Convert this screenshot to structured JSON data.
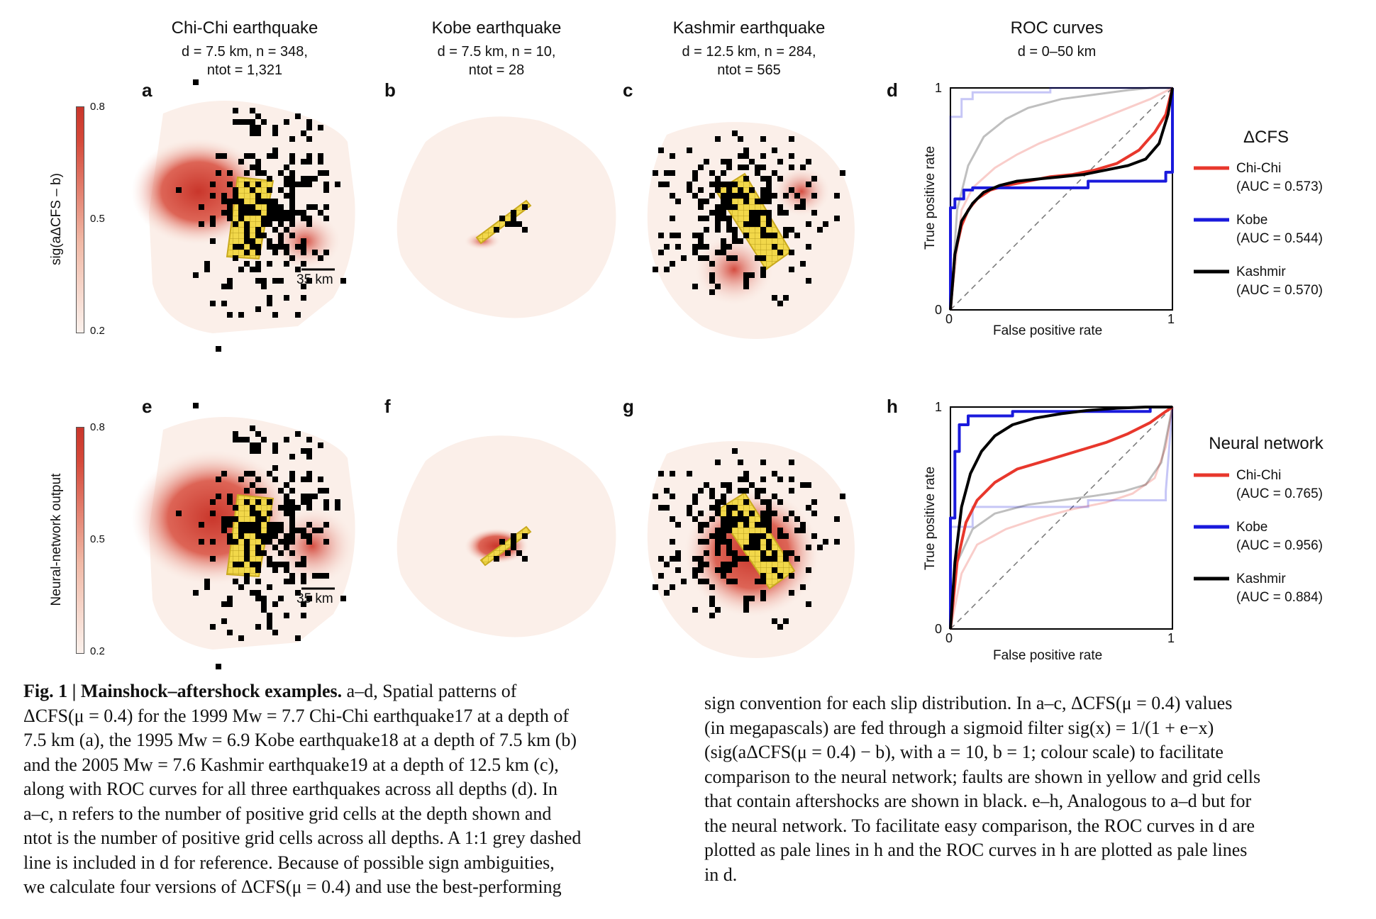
{
  "columns": [
    {
      "title": "Chi-Chi earthquake",
      "line1": "d = 7.5 km, n = 348,",
      "line2": "ntot = 1,321"
    },
    {
      "title": "Kobe earthquake",
      "line1": "d = 7.5 km, n = 10,",
      "line2": "ntot = 28"
    },
    {
      "title": "Kashmir earthquake",
      "line1": "d = 12.5 km, n = 284,",
      "line2": "ntot = 565"
    },
    {
      "title": "ROC curves",
      "line1": "d = 0–50 km",
      "line2": ""
    }
  ],
  "panel_labels": [
    "a",
    "b",
    "c",
    "d",
    "e",
    "f",
    "g",
    "h"
  ],
  "colorbars": [
    {
      "label": "sig(aΔCFS – b)",
      "ticks": [
        "0.8",
        "0.5",
        "0.2"
      ]
    },
    {
      "label": "Neural-network output",
      "ticks": [
        "0.8",
        "0.5",
        "0.2"
      ]
    }
  ],
  "scale_bar": "35 km",
  "colors": {
    "chichi": "#e8372c",
    "kobe": "#1a1adc",
    "kashmir": "#000000",
    "fault": "#f2d84a",
    "heat": "#c9362b"
  },
  "chart_data": [
    {
      "type": "line",
      "panel": "d",
      "xlabel": "False positive rate",
      "ylabel": "True positive rate",
      "xlim": [
        0,
        1
      ],
      "ylim": [
        0,
        1
      ],
      "xticks": [
        "0",
        "1"
      ],
      "yticks": [
        "0",
        "1"
      ],
      "legend_title": "ΔCFS",
      "series": [
        {
          "name": "Chi-Chi",
          "auc": "(AUC = 0.573)",
          "style": "solid",
          "x": [
            0,
            0.02,
            0.05,
            0.08,
            0.12,
            0.18,
            0.25,
            0.35,
            0.45,
            0.55,
            0.65,
            0.75,
            0.85,
            0.92,
            0.97,
            1.0
          ],
          "y": [
            0,
            0.25,
            0.38,
            0.45,
            0.5,
            0.54,
            0.56,
            0.58,
            0.6,
            0.61,
            0.63,
            0.66,
            0.72,
            0.8,
            0.88,
            1.0
          ]
        },
        {
          "name": "Kobe",
          "auc": "(AUC = 0.544)",
          "style": "solid",
          "x": [
            0,
            0,
            0.02,
            0.02,
            0.06,
            0.06,
            0.1,
            0.1,
            0.62,
            0.62,
            0.97,
            0.97,
            1.0,
            1.0
          ],
          "y": [
            0,
            0.46,
            0.46,
            0.5,
            0.5,
            0.54,
            0.54,
            0.55,
            0.55,
            0.58,
            0.58,
            0.62,
            0.62,
            1.0
          ]
        },
        {
          "name": "Kashmir",
          "auc": "(AUC = 0.570)",
          "style": "solid",
          "x": [
            0,
            0.02,
            0.05,
            0.1,
            0.15,
            0.22,
            0.3,
            0.4,
            0.5,
            0.6,
            0.7,
            0.8,
            0.88,
            0.94,
            0.98,
            1.0
          ],
          "y": [
            0,
            0.25,
            0.4,
            0.48,
            0.53,
            0.56,
            0.58,
            0.59,
            0.6,
            0.61,
            0.63,
            0.65,
            0.68,
            0.75,
            0.88,
            1.0
          ]
        }
      ],
      "pale_series": [
        {
          "name": "Chi-Chi",
          "x": [
            0,
            0.05,
            0.1,
            0.2,
            0.3,
            0.4,
            0.5,
            0.6,
            0.7,
            0.8,
            0.9,
            1.0
          ],
          "y": [
            0,
            0.45,
            0.55,
            0.64,
            0.7,
            0.75,
            0.79,
            0.83,
            0.87,
            0.91,
            0.95,
            1.0
          ]
        },
        {
          "name": "Kobe",
          "x": [
            0,
            0,
            0.05,
            0.05,
            0.1,
            0.1,
            0.45,
            0.45,
            1.0
          ],
          "y": [
            0,
            0.87,
            0.87,
            0.95,
            0.95,
            0.98,
            0.98,
            1.0,
            1.0
          ]
        },
        {
          "name": "Kashmir",
          "x": [
            0,
            0.03,
            0.08,
            0.15,
            0.25,
            0.35,
            0.5,
            0.65,
            0.8,
            0.9,
            1.0
          ],
          "y": [
            0,
            0.45,
            0.65,
            0.78,
            0.86,
            0.91,
            0.95,
            0.97,
            0.99,
            1.0,
            1.0
          ]
        }
      ]
    },
    {
      "type": "line",
      "panel": "h",
      "xlabel": "False positive rate",
      "ylabel": "True positive rate",
      "xlim": [
        0,
        1
      ],
      "ylim": [
        0,
        1
      ],
      "xticks": [
        "0",
        "1"
      ],
      "yticks": [
        "0",
        "1"
      ],
      "legend_title": "Neural network",
      "series": [
        {
          "name": "Chi-Chi",
          "auc": "(AUC = 0.765)",
          "style": "solid",
          "x": [
            0,
            0.03,
            0.07,
            0.12,
            0.2,
            0.3,
            0.4,
            0.5,
            0.6,
            0.7,
            0.8,
            0.9,
            0.97,
            1.0
          ],
          "y": [
            0,
            0.3,
            0.48,
            0.58,
            0.66,
            0.72,
            0.75,
            0.78,
            0.81,
            0.84,
            0.88,
            0.93,
            0.98,
            1.0
          ]
        },
        {
          "name": "Kobe",
          "auc": "(AUC = 0.956)",
          "style": "solid",
          "x": [
            0,
            0,
            0.02,
            0.02,
            0.04,
            0.04,
            0.08,
            0.08,
            0.28,
            0.28,
            0.9,
            0.9,
            1.0
          ],
          "y": [
            0,
            0.5,
            0.5,
            0.8,
            0.8,
            0.92,
            0.92,
            0.96,
            0.96,
            0.98,
            0.98,
            1.0,
            1.0
          ]
        },
        {
          "name": "Kashmir",
          "auc": "(AUC = 0.884)",
          "style": "solid",
          "x": [
            0,
            0.02,
            0.05,
            0.09,
            0.14,
            0.2,
            0.28,
            0.38,
            0.5,
            0.62,
            0.75,
            0.88,
            1.0
          ],
          "y": [
            0,
            0.3,
            0.55,
            0.7,
            0.8,
            0.87,
            0.92,
            0.95,
            0.97,
            0.985,
            0.995,
            1.0,
            1.0
          ]
        }
      ],
      "pale_series": [
        {
          "name": "Chi-Chi",
          "x": [
            0,
            0.05,
            0.12,
            0.25,
            0.4,
            0.55,
            0.7,
            0.82,
            0.92,
            0.97,
            1.0
          ],
          "y": [
            0,
            0.25,
            0.38,
            0.45,
            0.5,
            0.54,
            0.57,
            0.61,
            0.68,
            0.82,
            1.0
          ]
        },
        {
          "name": "Kobe",
          "x": [
            0,
            0,
            0.1,
            0.1,
            0.62,
            0.62,
            0.97,
            0.97,
            1.0
          ],
          "y": [
            0,
            0.46,
            0.46,
            0.55,
            0.55,
            0.58,
            0.58,
            0.62,
            1.0
          ]
        },
        {
          "name": "Kashmir",
          "x": [
            0,
            0.03,
            0.1,
            0.2,
            0.35,
            0.5,
            0.65,
            0.78,
            0.88,
            0.95,
            1.0
          ],
          "y": [
            0,
            0.3,
            0.45,
            0.52,
            0.56,
            0.58,
            0.6,
            0.62,
            0.65,
            0.75,
            1.0
          ]
        }
      ]
    }
  ],
  "caption_left": {
    "fig": "Fig. 1 | Mainshock–aftershock examples.",
    "lines": [
      " a–d, Spatial patterns of",
      "ΔCFS(μ = 0.4) for the 1999 Mw = 7.7 Chi-Chi earthquake17 at a depth of",
      "7.5 km (a), the 1995 Mw = 6.9 Kobe earthquake18 at a depth of 7.5 km (b)",
      "and the 2005 Mw = 7.6 Kashmir earthquake19 at a depth of 12.5 km (c),",
      "along with ROC curves for all three earthquakes across all depths (d). In",
      "a–c, n refers to the number of positive grid cells at the depth shown and",
      "ntot is the number of positive grid cells across all depths. A 1:1 grey dashed",
      "line is included in d for reference. Because of possible sign ambiguities,",
      "we calculate four versions of ΔCFS(μ = 0.4) and use the best-performing"
    ]
  },
  "caption_right": {
    "lines": [
      "sign convention for each slip distribution. In a–c, ΔCFS(μ = 0.4) values",
      "(in megapascals) are fed through a sigmoid filter sig(x) = 1/(1 + e−x)",
      "(sig(aΔCFS(μ = 0.4) − b), with a = 10, b = 1; colour scale) to facilitate",
      "comparison to the neural network; faults are shown in yellow and grid cells",
      "that contain aftershocks are shown in black. e–h, Analogous to a–d but for",
      "the neural network. To facilitate easy comparison, the ROC curves in d are",
      "plotted as pale lines in h and the ROC curves in h are plotted as pale lines",
      "in d."
    ]
  }
}
